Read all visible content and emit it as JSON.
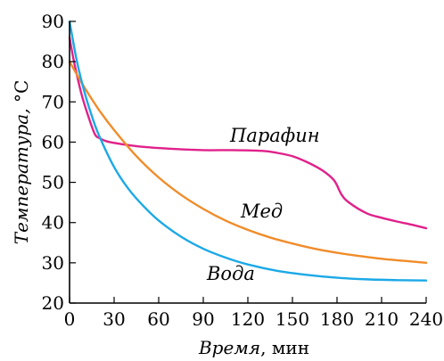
{
  "chart_data": {
    "type": "line",
    "title": "",
    "xlabel": {
      "name": "Время",
      "unit": ", мин"
    },
    "ylabel": {
      "name": "Температура, ",
      "unit": "°C"
    },
    "xlim": [
      0,
      240
    ],
    "ylim": [
      20,
      90
    ],
    "x_ticks": [
      0,
      30,
      60,
      90,
      120,
      150,
      180,
      210,
      240
    ],
    "y_ticks": [
      20,
      30,
      40,
      50,
      60,
      70,
      80,
      90
    ],
    "grid": false,
    "legend": "inline labels",
    "series": [
      {
        "name": "Парафин",
        "color": "#e0218a",
        "x": [
          0,
          3,
          8,
          13,
          17,
          20,
          25,
          35,
          50,
          70,
          90,
          110,
          130,
          140,
          150,
          160,
          170,
          178,
          183,
          188,
          200,
          210,
          220,
          230,
          240
        ],
        "y": [
          86,
          80,
          72,
          66,
          62,
          61,
          60.2,
          59.5,
          58.8,
          58.3,
          58,
          58,
          57.8,
          57.3,
          56.5,
          55,
          53,
          50.5,
          47,
          45,
          42.3,
          41.2,
          40.3,
          39.5,
          38.6
        ]
      },
      {
        "name": "Мед",
        "color": "#f08c2a",
        "x": [
          0,
          10,
          20,
          30,
          45,
          60,
          75,
          90,
          105,
          120,
          135,
          150,
          165,
          180,
          195,
          210,
          225,
          240
        ],
        "y": [
          80,
          73.6,
          67.9,
          63,
          56.5,
          51.2,
          46.9,
          43.4,
          40.5,
          38.2,
          36.3,
          34.8,
          33.5,
          32.5,
          31.7,
          31,
          30.5,
          30
        ]
      },
      {
        "name": "Вода",
        "color": "#1ba9e6",
        "x": [
          0,
          5,
          10,
          15,
          20,
          30,
          40,
          50,
          60,
          75,
          90,
          105,
          120,
          140,
          160,
          180,
          200,
          220,
          240
        ],
        "y": [
          90,
          80,
          72.5,
          66.5,
          61.5,
          53.8,
          48.2,
          44,
          40.5,
          36.5,
          33.5,
          31.3,
          29.6,
          28,
          27,
          26.3,
          25.9,
          25.7,
          25.6
        ]
      }
    ]
  }
}
